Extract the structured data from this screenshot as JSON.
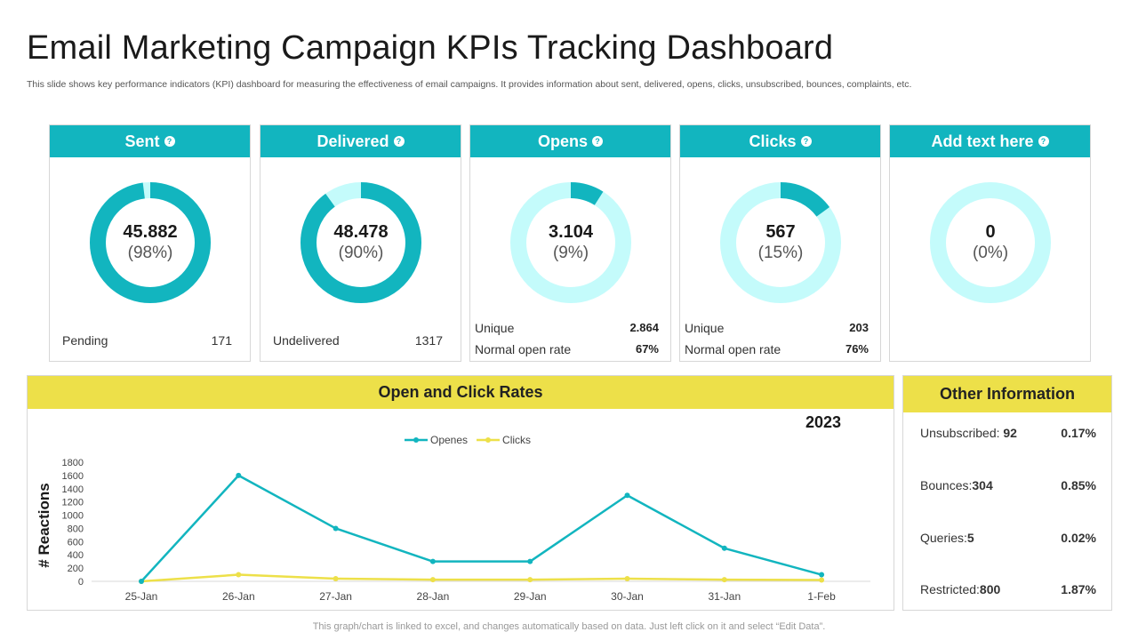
{
  "title": "Email Marketing Campaign KPIs Tracking Dashboard",
  "subtitle": "This slide shows key performance indicators (KPI) dashboard for measuring the effectiveness of email campaigns. It provides information about sent, delivered, opens, clicks, unsubscribed, bounces, complaints, etc.",
  "colors": {
    "teal": "#12b5bf",
    "light_teal": "#c4fbfb",
    "yellow": "#ede049"
  },
  "kpis": [
    {
      "label": "Sent",
      "value": "45.882",
      "percent": "(98%)",
      "fraction": 0.98,
      "rows": [
        {
          "label": "Pending",
          "value": "171"
        }
      ]
    },
    {
      "label": "Delivered",
      "value": "48.478",
      "percent": "(90%)",
      "fraction": 0.9,
      "rows": [
        {
          "label": "Undelivered",
          "value": "1317"
        }
      ]
    },
    {
      "label": "Opens",
      "value": "3.104",
      "percent": "(9%)",
      "fraction": 0.09,
      "rows": [
        {
          "label": "Unique",
          "value": "2.864"
        },
        {
          "label": "Normal open rate",
          "value": "67%"
        }
      ]
    },
    {
      "label": "Clicks",
      "value": "567",
      "percent": "(15%)",
      "fraction": 0.15,
      "rows": [
        {
          "label": "Unique",
          "value": "203"
        },
        {
          "label": "Normal open rate",
          "value": "76%"
        }
      ]
    },
    {
      "label": "Add text here",
      "value": "0",
      "percent": "(0%)",
      "fraction": 0.0,
      "rows": []
    }
  ],
  "chart_section": {
    "title": "Open and Click Rates",
    "year": "2023"
  },
  "chart_data": {
    "type": "line",
    "categories": [
      "25-Jan",
      "26-Jan",
      "27-Jan",
      "28-Jan",
      "29-Jan",
      "30-Jan",
      "31-Jan",
      "1-Feb"
    ],
    "series": [
      {
        "name": "Openes",
        "values": [
          0,
          1600,
          800,
          300,
          300,
          1300,
          500,
          100
        ],
        "color": "#12b5bf"
      },
      {
        "name": "Clicks",
        "values": [
          0,
          100,
          40,
          25,
          25,
          40,
          25,
          20
        ],
        "color": "#ede049"
      }
    ],
    "ylabel": "# Reactions",
    "yticks": [
      0,
      200,
      400,
      600,
      800,
      1000,
      1200,
      1400,
      1600,
      1800
    ],
    "ylim": [
      0,
      1800
    ],
    "legend": "top-center"
  },
  "other_info": {
    "title": "Other Information",
    "items": [
      {
        "label": "Unsubscribed: ",
        "value": "92",
        "percent": "0.17%"
      },
      {
        "label": "Bounces:",
        "value": "304",
        "percent": "0.85%"
      },
      {
        "label": "Queries:",
        "value": "5",
        "percent": "0.02%"
      },
      {
        "label": "Restricted:",
        "value": "800",
        "percent": "1.87%"
      }
    ]
  },
  "footer": "This graph/chart is linked to excel,  and changes automatically based on data. Just left click on it and select “Edit Data”."
}
